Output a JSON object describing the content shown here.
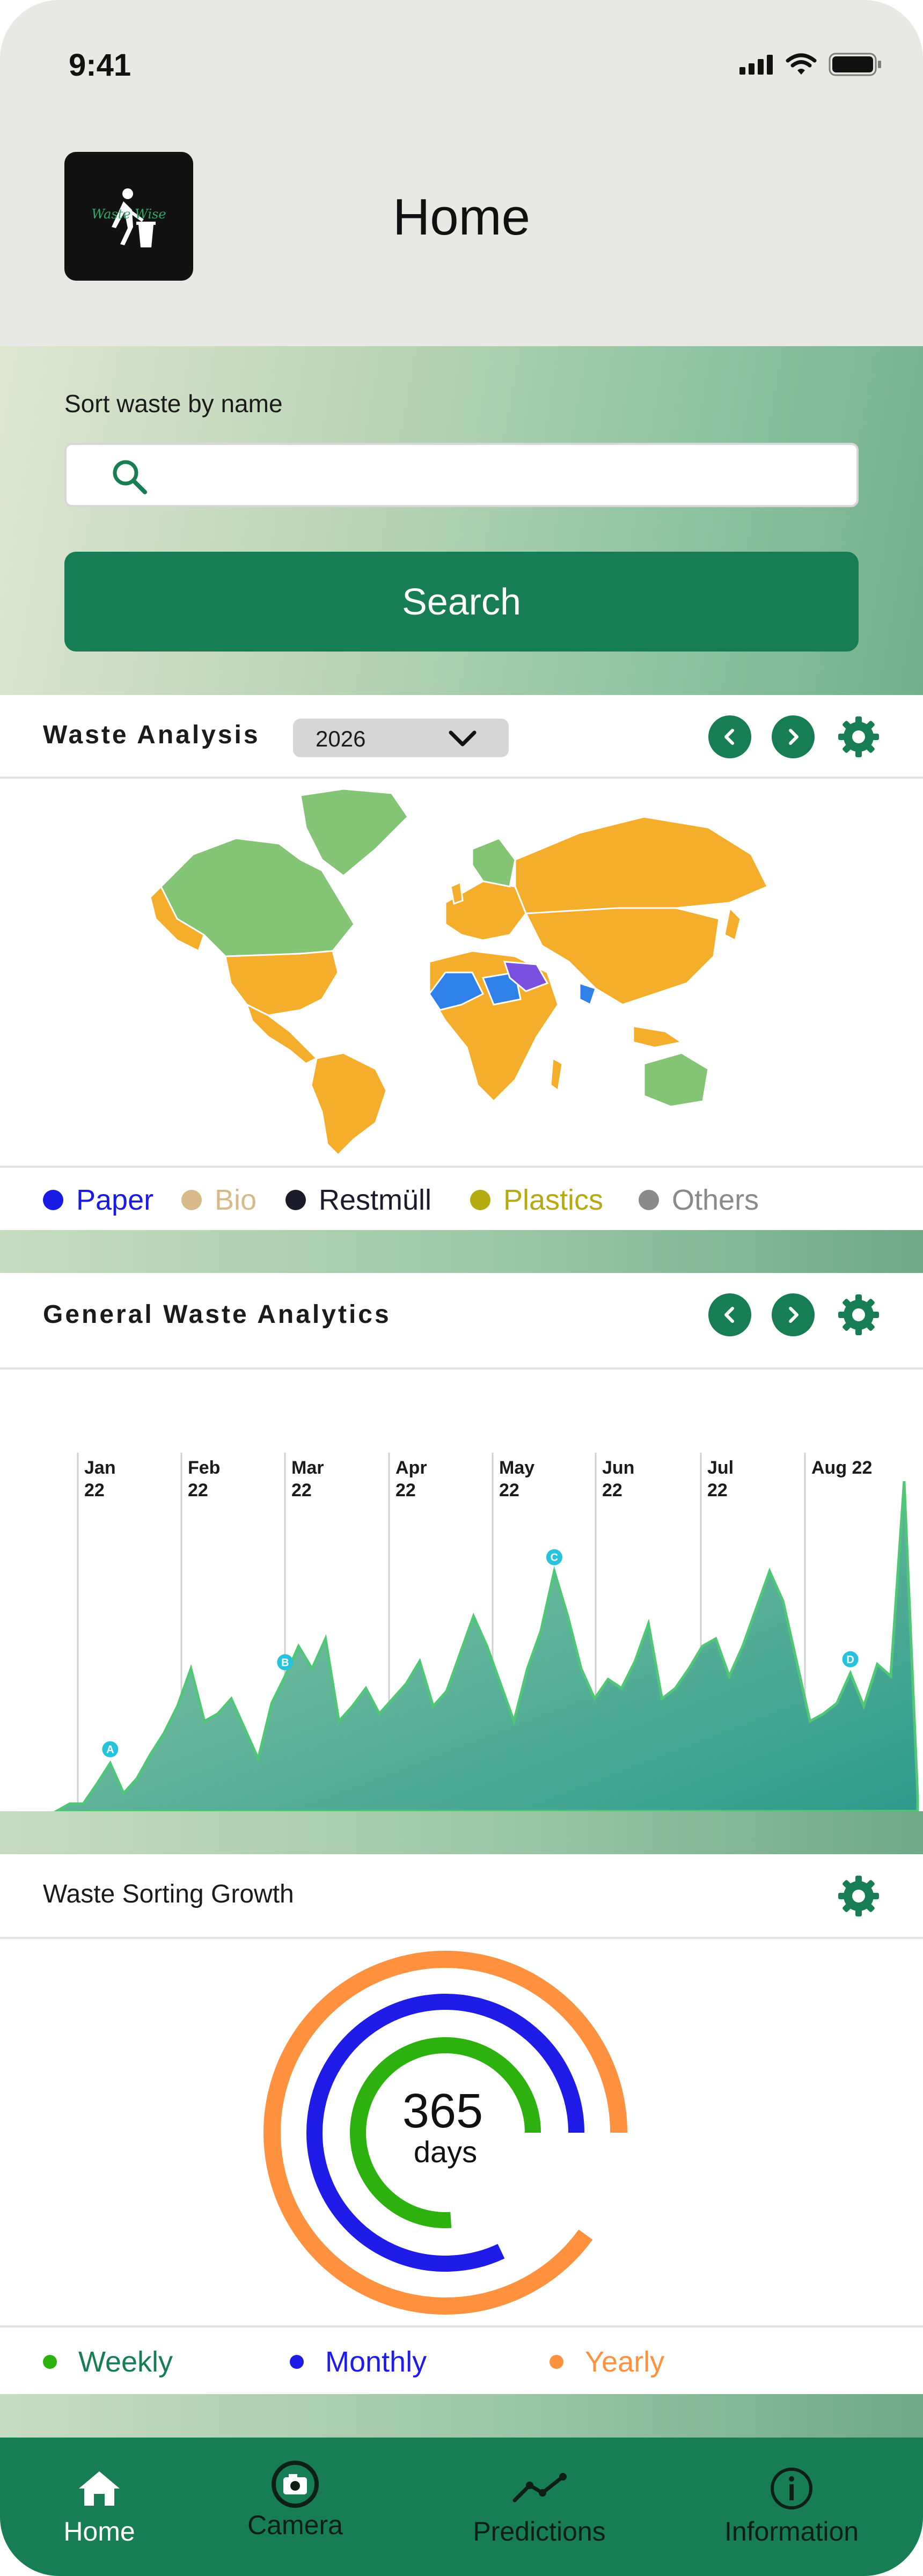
{
  "status_bar": {
    "time": "9:41"
  },
  "header": {
    "logo_text": "Waste Wise",
    "title": "Home"
  },
  "search": {
    "label": "Sort waste by name",
    "placeholder": "",
    "button_label": "Search"
  },
  "waste_analysis": {
    "title": "Waste Analysis",
    "year": "2026",
    "legend": [
      {
        "label": "Paper",
        "color": "#1a1ae6"
      },
      {
        "label": "Bio",
        "color": "#d8b98a"
      },
      {
        "label": "Restmüll",
        "color": "#1b1b2b"
      },
      {
        "label": "Plastics",
        "color": "#b5aa10"
      },
      {
        "label": "Others",
        "color": "#8a8a8a"
      }
    ],
    "map_colors": {
      "land_main": "#f5ae2c",
      "land_green": "#84c575",
      "paper": "#2f80e8",
      "highlight": "#7b4fe0"
    }
  },
  "general_analytics": {
    "title": "General Waste Analytics"
  },
  "chart_data": {
    "type": "area",
    "title": "General Waste Analytics",
    "x_month_labels": [
      "Jan\n22",
      "Feb\n22",
      "Mar\n22",
      "Apr\n22",
      "May\n22",
      "Jun\n22",
      "Jul\n22",
      "Aug 22"
    ],
    "months": [
      {
        "month": "Jan",
        "year": "22"
      },
      {
        "month": "Feb",
        "year": "22"
      },
      {
        "month": "Mar",
        "year": "22"
      },
      {
        "month": "Apr",
        "year": "22"
      },
      {
        "month": "May",
        "year": "22"
      },
      {
        "month": "Jun",
        "year": "22"
      },
      {
        "month": "Jul",
        "year": "22"
      },
      {
        "month": "Aug 22",
        "year": ""
      }
    ],
    "values": [
      0,
      5,
      5,
      18,
      32,
      12,
      22,
      38,
      52,
      70,
      95,
      60,
      65,
      75,
      55,
      35,
      72,
      90,
      110,
      95,
      115,
      60,
      70,
      82,
      65,
      75,
      85,
      100,
      70,
      80,
      105,
      130,
      110,
      85,
      60,
      95,
      120,
      160,
      130,
      95,
      75,
      88,
      82,
      100,
      125,
      75,
      82,
      95,
      110,
      115,
      90,
      110,
      135,
      160,
      140,
      100,
      60,
      65,
      72,
      92,
      70,
      98,
      90,
      220,
      10
    ],
    "annotations": [
      {
        "label": "A",
        "index": 4
      },
      {
        "label": "B",
        "index": 17
      },
      {
        "label": "C",
        "index": 37
      },
      {
        "label": "D",
        "index": 59
      }
    ],
    "ylim": [
      0,
      230
    ],
    "colors": {
      "line": "#4fc776",
      "fill_top": "#7fc6a0",
      "fill_bottom": "#2e9a8c",
      "marker": "#27c3dc"
    }
  },
  "growth": {
    "title": "Waste Sorting Growth",
    "center_value": "365",
    "center_unit": "days",
    "rings": [
      {
        "name": "Yearly",
        "color": "#ff913f",
        "progress": 0.9
      },
      {
        "name": "Monthly",
        "color": "#1f1be8",
        "progress": 0.82
      },
      {
        "name": "Weekly",
        "color": "#2db10e",
        "progress": 0.76
      }
    ],
    "legend": [
      {
        "label": "Weekly",
        "color": "#2db10e",
        "text_color": "#167d55"
      },
      {
        "label": "Monthly",
        "color": "#1f1be8",
        "text_color": "#1f1be8"
      },
      {
        "label": "Yearly",
        "color": "#ff913f",
        "text_color": "#ff913f"
      }
    ]
  },
  "bottom_nav": {
    "items": [
      {
        "label": "Home",
        "icon": "home-icon",
        "active": true
      },
      {
        "label": "Camera",
        "icon": "camera-icon",
        "active": false
      },
      {
        "label": "Predictions",
        "icon": "trend-icon",
        "active": false
      },
      {
        "label": "Information",
        "icon": "info-icon",
        "active": false
      }
    ]
  }
}
